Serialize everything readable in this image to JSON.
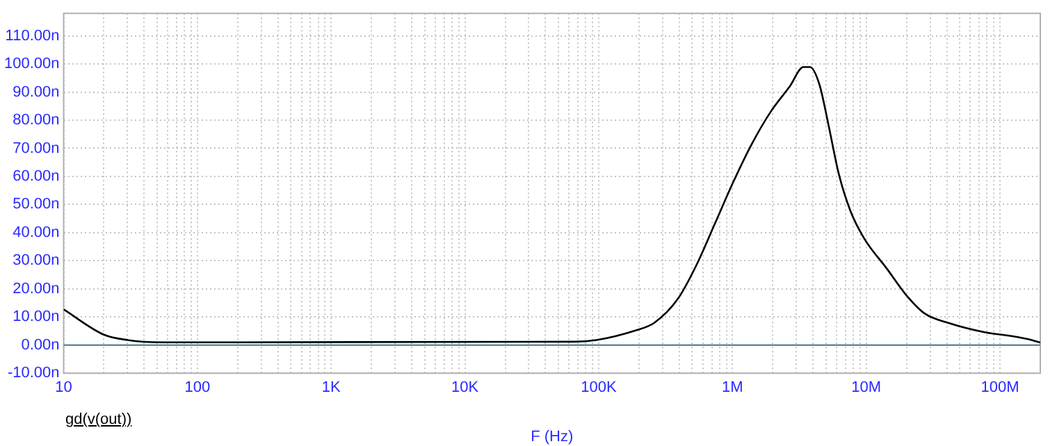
{
  "chart_data": {
    "type": "line",
    "xlabel": "F (Hz)",
    "log": "x",
    "grid": true,
    "legend": "bottom left",
    "marker": "none",
    "line_style": "solid",
    "x": [
      10,
      20,
      30,
      54,
      66000,
      96000,
      188000,
      260000,
      390000,
      537000,
      740000,
      1020000,
      1400000,
      1930000,
      2670000,
      3390000,
      3800000,
      4470000,
      5250000,
      6200000,
      7600000,
      9600000,
      14400000,
      19800000,
      27400000,
      41000000,
      78000000,
      115000000,
      158000000,
      200000000
    ],
    "series": [
      {
        "name": "gd(v(out))",
        "color": "#000000",
        "values": [
          12.7,
          3.7,
          1.8,
          1.0,
          1.2,
          1.8,
          5.2,
          7.9,
          16.4,
          28.4,
          43.3,
          58.3,
          71.7,
          83.0,
          91.9,
          98.9,
          98.9,
          92.6,
          77.7,
          61.3,
          47.8,
          38.1,
          26.9,
          17.9,
          11.2,
          7.9,
          4.5,
          3.4,
          2.2,
          0.9
        ]
      }
    ],
    "xlim": [
      10,
      200000000
    ],
    "ylim": [
      -10,
      118
    ],
    "xticks": [
      {
        "value": 10,
        "label": "10"
      },
      {
        "value": 20,
        "label": null
      },
      {
        "value": 30,
        "label": null
      },
      {
        "value": 40,
        "label": null
      },
      {
        "value": 50,
        "label": null
      },
      {
        "value": 60,
        "label": null
      },
      {
        "value": 70,
        "label": null
      },
      {
        "value": 80,
        "label": null
      },
      {
        "value": 90,
        "label": null
      },
      {
        "value": 100,
        "label": "100"
      },
      {
        "value": 200,
        "label": null
      },
      {
        "value": 300,
        "label": null
      },
      {
        "value": 400,
        "label": null
      },
      {
        "value": 500,
        "label": null
      },
      {
        "value": 600,
        "label": null
      },
      {
        "value": 700,
        "label": null
      },
      {
        "value": 800,
        "label": null
      },
      {
        "value": 900,
        "label": null
      },
      {
        "value": 1000,
        "label": "1K"
      },
      {
        "value": 2000,
        "label": null
      },
      {
        "value": 3000,
        "label": null
      },
      {
        "value": 4000,
        "label": null
      },
      {
        "value": 5000,
        "label": null
      },
      {
        "value": 6000,
        "label": null
      },
      {
        "value": 7000,
        "label": null
      },
      {
        "value": 8000,
        "label": null
      },
      {
        "value": 9000,
        "label": null
      },
      {
        "value": 10000,
        "label": "10K"
      },
      {
        "value": 20000,
        "label": null
      },
      {
        "value": 30000,
        "label": null
      },
      {
        "value": 40000,
        "label": null
      },
      {
        "value": 50000,
        "label": null
      },
      {
        "value": 60000,
        "label": null
      },
      {
        "value": 70000,
        "label": null
      },
      {
        "value": 80000,
        "label": null
      },
      {
        "value": 90000,
        "label": null
      },
      {
        "value": 100000,
        "label": "100K"
      },
      {
        "value": 200000,
        "label": null
      },
      {
        "value": 300000,
        "label": null
      },
      {
        "value": 400000,
        "label": null
      },
      {
        "value": 500000,
        "label": null
      },
      {
        "value": 600000,
        "label": null
      },
      {
        "value": 700000,
        "label": null
      },
      {
        "value": 800000,
        "label": null
      },
      {
        "value": 900000,
        "label": null
      },
      {
        "value": 1000000,
        "label": "1M"
      },
      {
        "value": 2000000,
        "label": null
      },
      {
        "value": 3000000,
        "label": null
      },
      {
        "value": 4000000,
        "label": null
      },
      {
        "value": 5000000,
        "label": null
      },
      {
        "value": 6000000,
        "label": null
      },
      {
        "value": 7000000,
        "label": null
      },
      {
        "value": 8000000,
        "label": null
      },
      {
        "value": 9000000,
        "label": null
      },
      {
        "value": 10000000,
        "label": "10M"
      },
      {
        "value": 20000000,
        "label": null
      },
      {
        "value": 30000000,
        "label": null
      },
      {
        "value": 40000000,
        "label": null
      },
      {
        "value": 50000000,
        "label": null
      },
      {
        "value": 60000000,
        "label": null
      },
      {
        "value": 70000000,
        "label": null
      },
      {
        "value": 80000000,
        "label": null
      },
      {
        "value": 90000000,
        "label": null
      },
      {
        "value": 100000000,
        "label": "100M"
      },
      {
        "value": 200000000,
        "label": null
      }
    ],
    "yticks": [
      {
        "value": -10,
        "label": "-10.00n"
      },
      {
        "value": 0,
        "label": "0.00n"
      },
      {
        "value": 10,
        "label": "10.00n"
      },
      {
        "value": 20,
        "label": "20.00n"
      },
      {
        "value": 30,
        "label": "30.00n"
      },
      {
        "value": 40,
        "label": "40.00n"
      },
      {
        "value": 50,
        "label": "50.00n"
      },
      {
        "value": 60,
        "label": "60.00n"
      },
      {
        "value": 70,
        "label": "70.00n"
      },
      {
        "value": 80,
        "label": "80.00n"
      },
      {
        "value": 90,
        "label": "90.00n"
      },
      {
        "value": 100,
        "label": "100.00n"
      },
      {
        "value": 110,
        "label": "110.00n"
      }
    ],
    "ref_lines": [
      {
        "axis": "y",
        "value": 0,
        "color": "#5f8c9c"
      }
    ]
  }
}
